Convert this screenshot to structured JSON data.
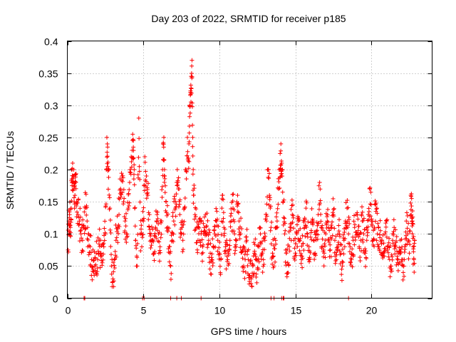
{
  "chart_data": {
    "type": "scatter",
    "title": "Day 203 of 2022, SRMTID for receiver p185",
    "xlabel": "GPS time / hours",
    "ylabel": "SRMTID / TECUs",
    "xlim": [
      0,
      24
    ],
    "ylim": [
      0,
      0.4
    ],
    "x_ticks": [
      "0",
      "5",
      "10",
      "15",
      "20"
    ],
    "x_tick_values": [
      0,
      5,
      10,
      15,
      20
    ],
    "y_ticks": [
      "0",
      "0.05",
      "0.1",
      "0.15",
      "0.2",
      "0.25",
      "0.3",
      "0.35",
      "0.4"
    ],
    "y_tick_values": [
      0,
      0.05,
      0.1,
      0.15,
      0.2,
      0.25,
      0.3,
      0.35,
      0.4
    ],
    "grid": true,
    "marker": "+",
    "color": "#ff0000",
    "series": [
      {
        "name": "SRMTID",
        "points": [
          [
            0.05,
            0.075
          ],
          [
            0.1,
            0.12
          ],
          [
            0.15,
            0.13
          ],
          [
            0.2,
            0.11
          ],
          [
            0.25,
            0.14
          ],
          [
            0.3,
            0.2
          ],
          [
            0.35,
            0.21
          ],
          [
            0.4,
            0.19
          ],
          [
            0.45,
            0.17
          ],
          [
            0.5,
            0.16
          ],
          [
            0.55,
            0.18
          ],
          [
            0.6,
            0.15
          ],
          [
            0.7,
            0.13
          ],
          [
            0.8,
            0.12
          ],
          [
            0.9,
            0.1
          ],
          [
            1.0,
            0.09
          ],
          [
            1.1,
            0.11
          ],
          [
            1.2,
            0.14
          ],
          [
            1.3,
            0.12
          ],
          [
            1.4,
            0.1
          ],
          [
            1.5,
            0.08
          ],
          [
            1.6,
            0.06
          ],
          [
            1.7,
            0.045
          ],
          [
            1.8,
            0.05
          ],
          [
            1.9,
            0.07
          ],
          [
            2.0,
            0.06
          ],
          [
            2.1,
            0.09
          ],
          [
            2.2,
            0.065
          ],
          [
            2.3,
            0.055
          ],
          [
            2.4,
            0.08
          ],
          [
            2.5,
            0.1
          ],
          [
            2.6,
            0.25
          ],
          [
            2.65,
            0.235
          ],
          [
            2.7,
            0.2
          ],
          [
            2.8,
            0.14
          ],
          [
            2.9,
            0.05
          ],
          [
            3.0,
            0.03
          ],
          [
            3.1,
            0.06
          ],
          [
            3.2,
            0.09
          ],
          [
            3.3,
            0.11
          ],
          [
            3.4,
            0.13
          ],
          [
            3.5,
            0.17
          ],
          [
            3.6,
            0.19
          ],
          [
            3.7,
            0.15
          ],
          [
            3.8,
            0.12
          ],
          [
            3.9,
            0.1
          ],
          [
            4.0,
            0.14
          ],
          [
            4.1,
            0.18
          ],
          [
            4.2,
            0.22
          ],
          [
            4.3,
            0.255
          ],
          [
            4.35,
            0.245
          ],
          [
            4.4,
            0.2
          ],
          [
            4.5,
            0.09
          ],
          [
            4.6,
            0.05
          ],
          [
            4.7,
            0.28
          ],
          [
            4.8,
            0.1
          ],
          [
            4.9,
            0.08
          ],
          [
            5.0,
            0.12
          ],
          [
            5.1,
            0.22
          ],
          [
            5.2,
            0.19
          ],
          [
            5.3,
            0.16
          ],
          [
            5.4,
            0.13
          ],
          [
            5.5,
            0.1
          ],
          [
            5.6,
            0.09
          ],
          [
            5.7,
            0.07
          ],
          [
            5.8,
            0.11
          ],
          [
            5.9,
            0.13
          ],
          [
            6.0,
            0.1
          ],
          [
            6.1,
            0.08
          ],
          [
            6.2,
            0.12
          ],
          [
            6.3,
            0.24
          ],
          [
            6.35,
            0.25
          ],
          [
            6.4,
            0.19
          ],
          [
            6.5,
            0.15
          ],
          [
            6.6,
            0.11
          ],
          [
            6.7,
            0.08
          ],
          [
            6.8,
            0.05
          ],
          [
            6.9,
            0.09
          ],
          [
            7.0,
            0.12
          ],
          [
            7.1,
            0.14
          ],
          [
            7.2,
            0.18
          ],
          [
            7.3,
            0.17
          ],
          [
            7.4,
            0.13
          ],
          [
            7.5,
            0.1
          ],
          [
            7.6,
            0.09
          ],
          [
            7.7,
            0.14
          ],
          [
            7.8,
            0.2
          ],
          [
            7.9,
            0.25
          ],
          [
            8.0,
            0.24
          ],
          [
            8.05,
            0.3
          ],
          [
            8.1,
            0.32
          ],
          [
            8.15,
            0.345
          ],
          [
            8.2,
            0.37
          ],
          [
            8.25,
            0.25
          ],
          [
            8.3,
            0.16
          ],
          [
            8.4,
            0.13
          ],
          [
            8.5,
            0.11
          ],
          [
            8.6,
            0.09
          ],
          [
            8.7,
            0.12
          ],
          [
            8.8,
            0.1
          ],
          [
            8.9,
            0.08
          ],
          [
            9.0,
            0.11
          ],
          [
            9.1,
            0.13
          ],
          [
            9.2,
            0.1
          ],
          [
            9.3,
            0.09
          ],
          [
            9.4,
            0.07
          ],
          [
            9.5,
            0.06
          ],
          [
            9.6,
            0.08
          ],
          [
            9.7,
            0.1
          ],
          [
            9.8,
            0.12
          ],
          [
            9.9,
            0.09
          ],
          [
            10.0,
            0.07
          ],
          [
            10.1,
            0.06
          ],
          [
            10.2,
            0.16
          ],
          [
            10.3,
            0.11
          ],
          [
            10.4,
            0.08
          ],
          [
            10.5,
            0.065
          ],
          [
            10.6,
            0.07
          ],
          [
            10.7,
            0.09
          ],
          [
            10.8,
            0.12
          ],
          [
            10.9,
            0.14
          ],
          [
            11.0,
            0.1
          ],
          [
            11.1,
            0.08
          ],
          [
            11.2,
            0.16
          ],
          [
            11.3,
            0.12
          ],
          [
            11.4,
            0.1
          ],
          [
            11.5,
            0.075
          ],
          [
            11.6,
            0.05
          ],
          [
            11.7,
            0.06
          ],
          [
            11.8,
            0.09
          ],
          [
            11.9,
            0.06
          ],
          [
            12.0,
            0.035
          ],
          [
            12.1,
            0.03
          ],
          [
            12.2,
            0.05
          ],
          [
            12.3,
            0.07
          ],
          [
            12.4,
            0.06
          ],
          [
            12.5,
            0.045
          ],
          [
            12.6,
            0.08
          ],
          [
            12.7,
            0.1
          ],
          [
            12.8,
            0.07
          ],
          [
            12.9,
            0.06
          ],
          [
            13.0,
            0.09
          ],
          [
            13.1,
            0.12
          ],
          [
            13.2,
            0.2
          ],
          [
            13.3,
            0.16
          ],
          [
            13.4,
            0.11
          ],
          [
            13.5,
            0.07
          ],
          [
            13.6,
            0.05
          ],
          [
            13.7,
            0.09
          ],
          [
            13.8,
            0.12
          ],
          [
            13.9,
            0.17
          ],
          [
            14.0,
            0.225
          ],
          [
            14.05,
            0.24
          ],
          [
            14.1,
            0.21
          ],
          [
            14.2,
            0.15
          ],
          [
            14.3,
            0.1
          ],
          [
            14.4,
            0.07
          ],
          [
            14.5,
            0.055
          ],
          [
            14.6,
            0.08
          ],
          [
            14.7,
            0.11
          ],
          [
            14.8,
            0.13
          ],
          [
            14.9,
            0.09
          ],
          [
            15.0,
            0.07
          ],
          [
            15.1,
            0.1
          ],
          [
            15.2,
            0.12
          ],
          [
            15.3,
            0.09
          ],
          [
            15.4,
            0.06
          ],
          [
            15.5,
            0.085
          ],
          [
            15.6,
            0.11
          ],
          [
            15.7,
            0.14
          ],
          [
            15.8,
            0.1
          ],
          [
            15.9,
            0.08
          ],
          [
            16.0,
            0.095
          ],
          [
            16.1,
            0.12
          ],
          [
            16.2,
            0.09
          ],
          [
            16.3,
            0.07
          ],
          [
            16.4,
            0.1
          ],
          [
            16.5,
            0.13
          ],
          [
            16.6,
            0.18
          ],
          [
            16.7,
            0.11
          ],
          [
            16.8,
            0.08
          ],
          [
            16.9,
            0.07
          ],
          [
            17.0,
            0.1
          ],
          [
            17.1,
            0.12
          ],
          [
            17.2,
            0.09
          ],
          [
            17.3,
            0.075
          ],
          [
            17.4,
            0.11
          ],
          [
            17.5,
            0.13
          ],
          [
            17.6,
            0.09
          ],
          [
            17.7,
            0.06
          ],
          [
            17.8,
            0.08
          ],
          [
            17.9,
            0.1
          ],
          [
            18.0,
            0.07
          ],
          [
            18.1,
            0.05
          ],
          [
            18.2,
            0.09
          ],
          [
            18.3,
            0.12
          ],
          [
            18.4,
            0.14
          ],
          [
            18.5,
            0.1
          ],
          [
            18.6,
            0.08
          ],
          [
            18.7,
            0.06
          ],
          [
            18.8,
            0.09
          ],
          [
            18.9,
            0.11
          ],
          [
            19.0,
            0.13
          ],
          [
            19.1,
            0.1
          ],
          [
            19.2,
            0.08
          ],
          [
            19.3,
            0.09
          ],
          [
            19.4,
            0.12
          ],
          [
            19.5,
            0.1
          ],
          [
            19.6,
            0.07
          ],
          [
            19.7,
            0.09
          ],
          [
            19.8,
            0.13
          ],
          [
            19.9,
            0.17
          ],
          [
            20.0,
            0.12
          ],
          [
            20.1,
            0.09
          ],
          [
            20.2,
            0.11
          ],
          [
            20.3,
            0.135
          ],
          [
            20.4,
            0.1
          ],
          [
            20.5,
            0.08
          ],
          [
            20.6,
            0.105
          ],
          [
            20.7,
            0.09
          ],
          [
            20.8,
            0.07
          ],
          [
            20.9,
            0.1
          ],
          [
            21.0,
            0.12
          ],
          [
            21.1,
            0.08
          ],
          [
            21.2,
            0.06
          ],
          [
            21.3,
            0.05
          ],
          [
            21.4,
            0.09
          ],
          [
            21.5,
            0.11
          ],
          [
            21.6,
            0.08
          ],
          [
            21.7,
            0.065
          ],
          [
            21.8,
            0.07
          ],
          [
            21.9,
            0.09
          ],
          [
            22.0,
            0.06
          ],
          [
            22.1,
            0.04
          ],
          [
            22.2,
            0.08
          ],
          [
            22.3,
            0.12
          ],
          [
            22.4,
            0.1
          ],
          [
            22.5,
            0.07
          ],
          [
            22.6,
            0.16
          ],
          [
            22.65,
            0.155
          ],
          [
            22.7,
            0.12
          ],
          [
            22.75,
            0.08
          ],
          [
            22.8,
            0.06
          ],
          [
            22.85,
            0.09
          ]
        ]
      }
    ],
    "zero_points_x": [
      1.1,
      1.15,
      4.95,
      5.05,
      6.8,
      7.2,
      7.5,
      8.8,
      13.4,
      13.6,
      14.1,
      14.2,
      14.25,
      18.5
    ]
  }
}
